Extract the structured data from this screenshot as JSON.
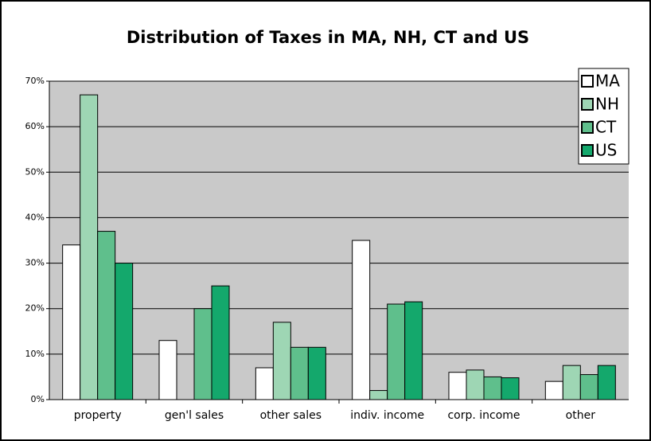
{
  "chart_data": {
    "type": "bar",
    "title": "Distribution of Taxes in MA, NH, CT and US",
    "categories": [
      "property",
      "gen'l sales",
      "other sales",
      "indiv. income",
      "corp. income",
      "other"
    ],
    "series": [
      {
        "name": "MA",
        "color": "#ffffff",
        "values": [
          34,
          13,
          7,
          35,
          6,
          4
        ]
      },
      {
        "name": "NH",
        "color": "#9ed6b4",
        "values": [
          67,
          0,
          17,
          2,
          6.5,
          7.5
        ]
      },
      {
        "name": "CT",
        "color": "#5fbf8c",
        "values": [
          37,
          20,
          11.5,
          21,
          5,
          5.5
        ]
      },
      {
        "name": "US",
        "color": "#14a86c",
        "values": [
          30,
          25,
          11.5,
          21.5,
          4.8,
          7.5
        ]
      }
    ],
    "ylim": [
      0,
      70
    ],
    "yticks": [
      {
        "value": 0,
        "label": "0%"
      },
      {
        "value": 10,
        "label": "10%"
      },
      {
        "value": 20,
        "label": "20%"
      },
      {
        "value": 30,
        "label": "30%"
      },
      {
        "value": 40,
        "label": "40%"
      },
      {
        "value": 50,
        "label": "50%"
      },
      {
        "value": 60,
        "label": "60%"
      },
      {
        "value": 70,
        "label": "70%"
      }
    ],
    "grid": true,
    "legend": "top-right"
  }
}
